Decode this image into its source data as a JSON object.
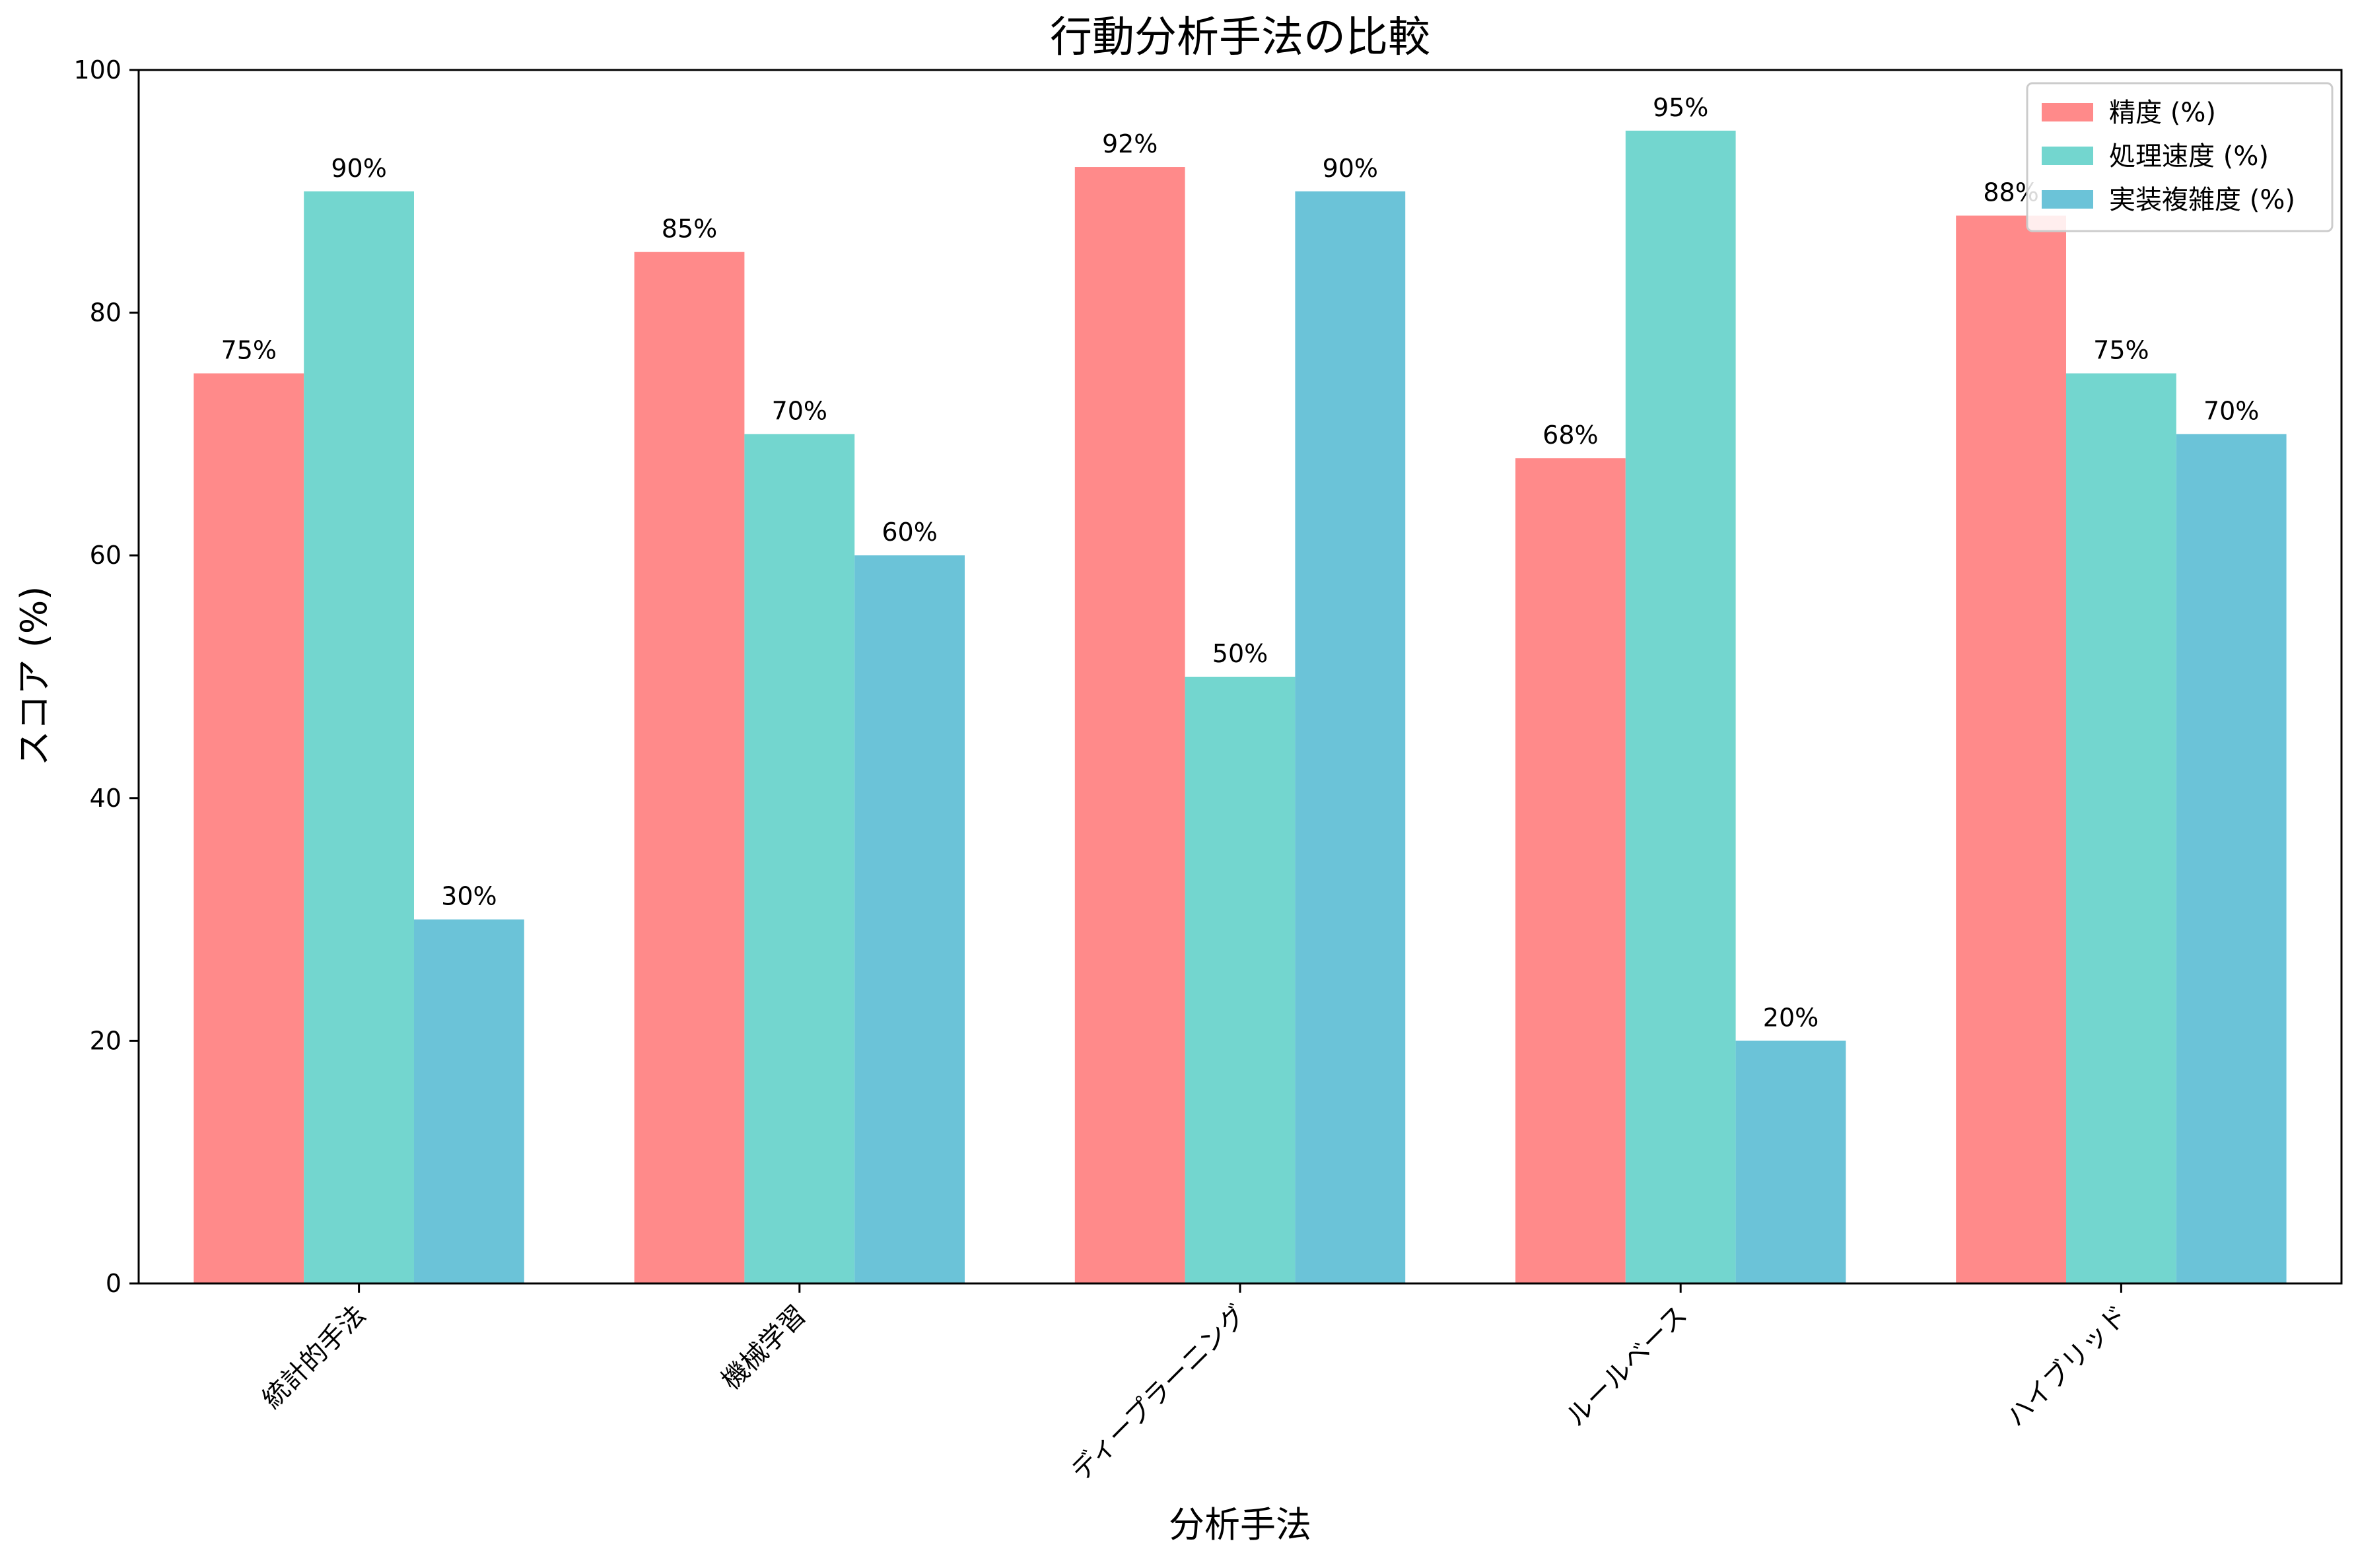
{
  "chart_data": {
    "type": "bar",
    "title": "行動分析手法の比較",
    "xlabel": "分析手法",
    "ylabel": "スコア (%)",
    "ylim": [
      0,
      100
    ],
    "yticks": [
      0,
      20,
      40,
      60,
      80,
      100
    ],
    "categories": [
      "統計的手法",
      "機械学習",
      "ディープラーニング",
      "ルールベース",
      "ハイブリッド"
    ],
    "series": [
      {
        "name": "精度 (%)",
        "color": "#ff8a8a",
        "values": [
          75,
          85,
          92,
          68,
          88
        ],
        "labels": [
          "75%",
          "85%",
          "92%",
          "68%",
          "88%"
        ]
      },
      {
        "name": "処理速度 (%)",
        "color": "#73d6cf",
        "values": [
          90,
          70,
          50,
          95,
          75
        ],
        "labels": [
          "90%",
          "70%",
          "50%",
          "95%",
          "75%"
        ]
      },
      {
        "name": "実装複雑度 (%)",
        "color": "#6bc3d8",
        "values": [
          30,
          60,
          90,
          20,
          70
        ],
        "labels": [
          "30%",
          "60%",
          "90%",
          "20%",
          "70%"
        ]
      }
    ],
    "grid": false,
    "legend_position": "top-right",
    "xtick_rotation": "45deg"
  }
}
